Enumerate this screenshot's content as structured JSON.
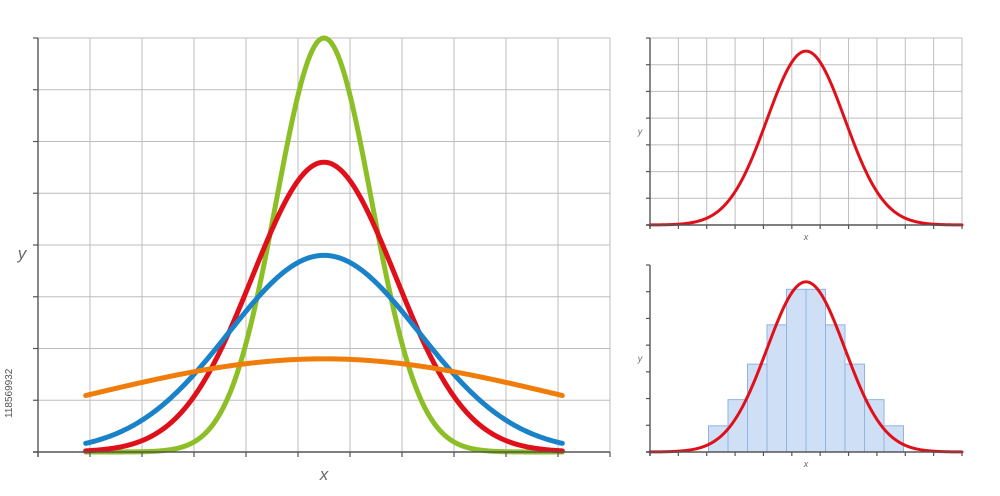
{
  "colors": {
    "grid": "#bdbdbd",
    "axis": "#555555",
    "green": "#8cbf26",
    "red": "#e0101a",
    "blue": "#1a82c8",
    "orange": "#f07d0a",
    "bar_fill": "#cfe0f6",
    "bar_stroke": "#8fb3e3"
  },
  "side_id": "118569932",
  "chart_data": [
    {
      "type": "line",
      "title": "",
      "xlabel": "x",
      "ylabel": "y",
      "grid": true,
      "xlim": [
        -3,
        3
      ],
      "ylim": [
        0,
        0.8
      ],
      "series": [
        {
          "color": "#8cbf26",
          "mean": 0,
          "sd": 0.5,
          "peak": 0.8
        },
        {
          "color": "#e0101a",
          "mean": 0,
          "sd": 0.75,
          "peak": 0.56
        },
        {
          "color": "#1a82c8",
          "mean": 0,
          "sd": 1.0,
          "peak": 0.38
        },
        {
          "color": "#f07d0a",
          "mean": 0,
          "sd": 2.5,
          "peak": 0.18
        }
      ]
    },
    {
      "type": "line",
      "title": "",
      "xlabel": "x",
      "ylabel": "y",
      "grid": true,
      "xlim": [
        -4,
        4
      ],
      "ylim": [
        0,
        1
      ],
      "series": [
        {
          "color": "#e0101a",
          "mean": 0,
          "sd": 1.0,
          "peak": 0.93
        }
      ]
    },
    {
      "type": "bar",
      "title": "",
      "xlabel": "x",
      "ylabel": "y",
      "grid": false,
      "xlim": [
        -4,
        4
      ],
      "ylim": [
        0,
        1
      ],
      "bins": [
        -2.5,
        -2.0,
        -1.5,
        -1.0,
        -0.5,
        0.0,
        0.5,
        1.0,
        1.5,
        2.0
      ],
      "bin_width": 0.5,
      "values": [
        0.14,
        0.28,
        0.47,
        0.68,
        0.87,
        0.87,
        0.68,
        0.47,
        0.28,
        0.14
      ],
      "series": [
        {
          "color": "#e0101a",
          "mean": 0,
          "sd": 1.0,
          "peak": 0.91
        }
      ]
    }
  ]
}
